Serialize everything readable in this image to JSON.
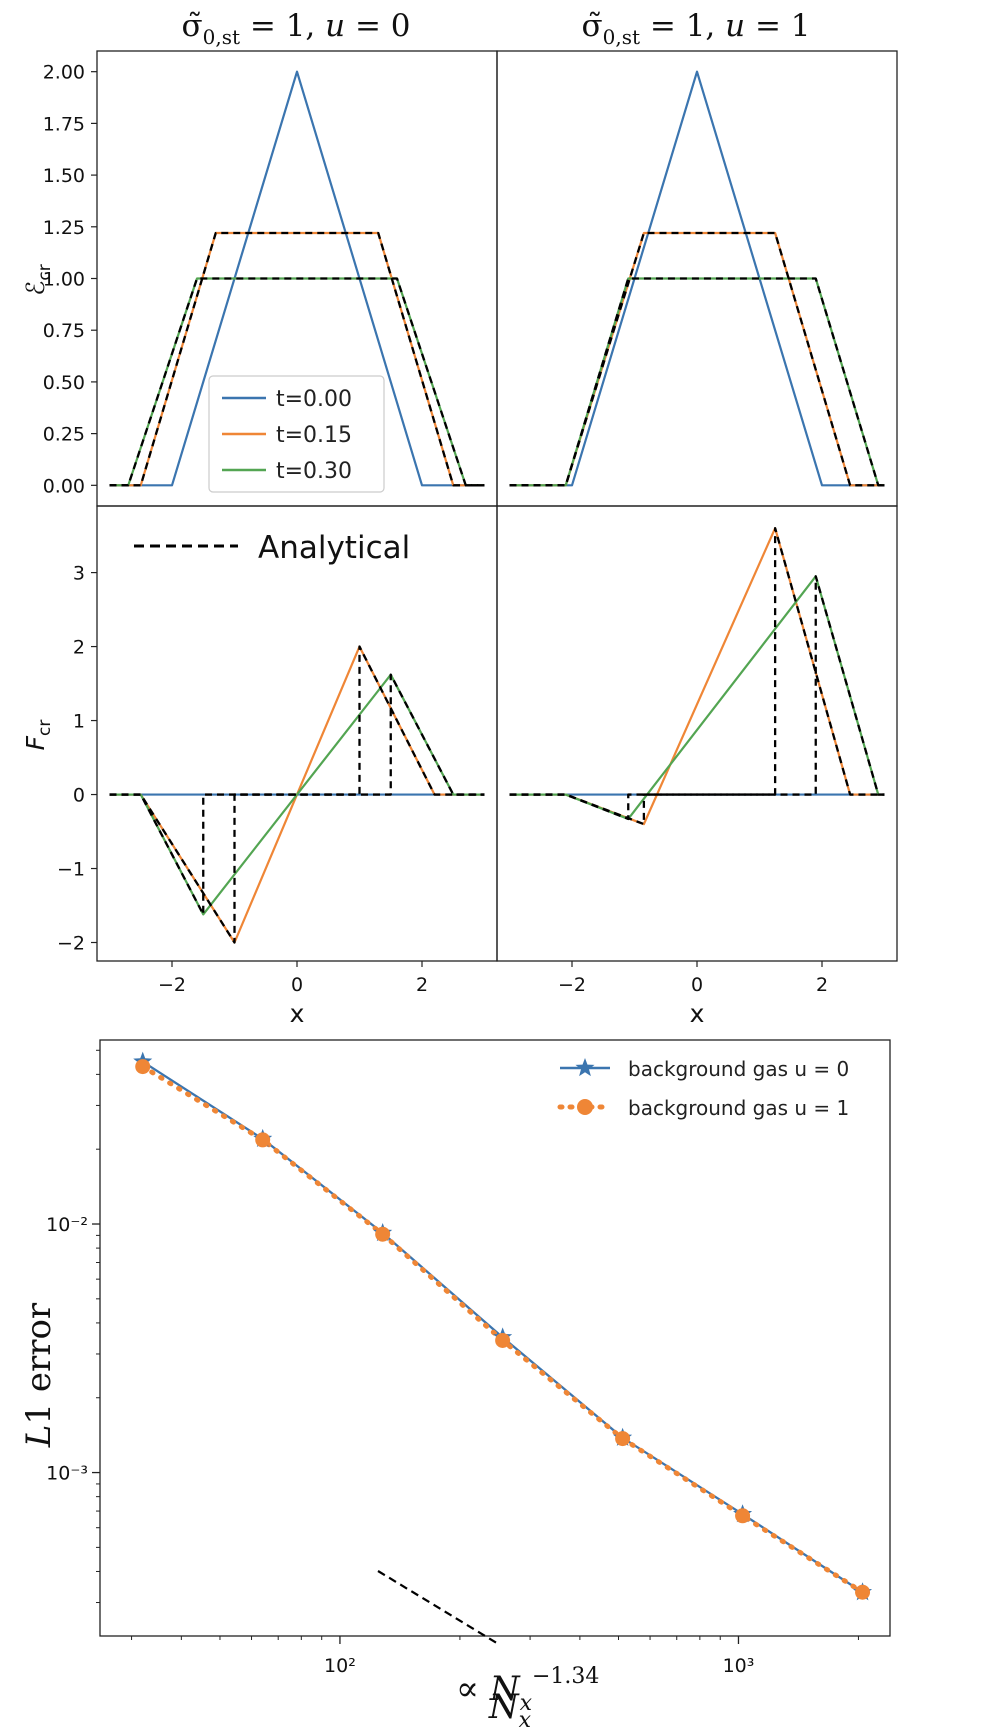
{
  "figure": {
    "col_titles": [
      "σ̃0,st = 1, u = 0",
      "σ̃0,st = 1, u = 1"
    ],
    "analytical_label": "Analytical"
  },
  "colors": {
    "t0": "#3b75af",
    "t015": "#ef8636",
    "t030": "#53a552",
    "analytical": "#000000"
  },
  "chart_data": [
    {
      "id": "E_u0",
      "type": "line",
      "ylabel": "ℰcr",
      "xlim": [
        -3.2,
        3.2
      ],
      "ylim": [
        -0.1,
        2.1
      ],
      "yticks": [
        0.0,
        0.25,
        0.5,
        0.75,
        1.0,
        1.25,
        1.5,
        1.75,
        2.0
      ],
      "ytick_labels": [
        "0.00",
        "0.25",
        "0.50",
        "0.75",
        "1.00",
        "1.25",
        "1.50",
        "1.75",
        "2.00"
      ],
      "legend": [
        "t=0.00",
        "t=0.15",
        "t=0.30"
      ],
      "series": [
        {
          "name": "t=0.00",
          "color": "#3b75af",
          "x": [
            -3,
            -2,
            0,
            2,
            3
          ],
          "y": [
            0,
            0,
            2,
            0,
            0
          ]
        },
        {
          "name": "t=0.15",
          "color": "#ef8636",
          "x": [
            -3,
            -2.5,
            -1.3,
            1.3,
            2.5,
            3
          ],
          "y": [
            0,
            0,
            1.22,
            1.22,
            0,
            0
          ]
        },
        {
          "name": "t=0.30",
          "color": "#53a552",
          "x": [
            -3,
            -2.7,
            -1.6,
            1.6,
            2.7,
            3
          ],
          "y": [
            0,
            0,
            1.0,
            1.0,
            0,
            0
          ]
        },
        {
          "name": "Analytical",
          "dashed": true,
          "x": [
            -3,
            -2.5,
            -1.3,
            1.3,
            2.5,
            3
          ],
          "y": [
            0,
            0,
            1.22,
            1.22,
            0,
            0
          ]
        },
        {
          "name": "Analytical",
          "dashed": true,
          "x": [
            -3,
            -2.7,
            -1.6,
            1.6,
            2.7,
            3
          ],
          "y": [
            0,
            0,
            1.0,
            1.0,
            0,
            0
          ]
        }
      ]
    },
    {
      "id": "E_u1",
      "type": "line",
      "xlim": [
        -3.2,
        3.2
      ],
      "ylim": [
        -0.1,
        2.1
      ],
      "series": [
        {
          "name": "t=0.00",
          "color": "#3b75af",
          "x": [
            -3,
            -2,
            0,
            2,
            3
          ],
          "y": [
            0,
            0,
            2,
            0,
            0
          ]
        },
        {
          "name": "t=0.15",
          "color": "#ef8636",
          "x": [
            -3,
            -2.1,
            -0.85,
            1.25,
            2.45,
            3
          ],
          "y": [
            0,
            0,
            1.22,
            1.22,
            0,
            0
          ]
        },
        {
          "name": "t=0.30",
          "color": "#53a552",
          "x": [
            -3,
            -2.1,
            -1.1,
            1.9,
            2.9,
            3
          ],
          "y": [
            0,
            0,
            1.0,
            1.0,
            0,
            0
          ]
        },
        {
          "name": "Analytical",
          "dashed": true,
          "x": [
            -3,
            -2.1,
            -0.85,
            1.25,
            2.45,
            3
          ],
          "y": [
            0,
            0,
            1.22,
            1.22,
            0,
            0
          ]
        },
        {
          "name": "Analytical",
          "dashed": true,
          "x": [
            -3,
            -2.1,
            -1.1,
            1.9,
            2.9,
            3
          ],
          "y": [
            0,
            0,
            1.0,
            1.0,
            0,
            0
          ]
        }
      ]
    },
    {
      "id": "F_u0",
      "type": "line",
      "ylabel": "Fcr",
      "xlabel": "x",
      "xlim": [
        -3.2,
        3.2
      ],
      "ylim": [
        -2.25,
        3.9
      ],
      "xticks": [
        -2,
        0,
        2
      ],
      "xtick_labels": [
        "−2",
        "0",
        "2"
      ],
      "yticks": [
        -2,
        -1,
        0,
        1,
        2,
        3
      ],
      "ytick_labels": [
        "−2",
        "−1",
        "0",
        "1",
        "2",
        "3"
      ],
      "series": [
        {
          "name": "t=0.00",
          "color": "#3b75af",
          "x": [
            -3,
            3
          ],
          "y": [
            0,
            0
          ]
        },
        {
          "name": "t=0.15",
          "color": "#ef8636",
          "x": [
            -3,
            -2.5,
            -1.0,
            1.0,
            2.2,
            3
          ],
          "y": [
            0,
            0,
            -2.0,
            2.0,
            0,
            0
          ]
        },
        {
          "name": "t=0.30",
          "color": "#53a552",
          "x": [
            -3,
            -2.5,
            -1.5,
            1.5,
            2.5,
            3
          ],
          "y": [
            0,
            0,
            -1.62,
            1.62,
            0,
            0
          ]
        },
        {
          "name": "Analytical",
          "dashed": true,
          "x": [
            -3,
            -2.5,
            -1.0,
            -1.0,
            1.0,
            1.0,
            2.2,
            3
          ],
          "y": [
            0,
            0,
            -2.0,
            0,
            0,
            2.0,
            0,
            0
          ]
        },
        {
          "name": "Analytical",
          "dashed": true,
          "x": [
            -3,
            -2.5,
            -1.5,
            -1.5,
            1.5,
            1.5,
            2.5,
            3
          ],
          "y": [
            0,
            0,
            -1.62,
            0,
            0,
            1.62,
            0,
            0
          ]
        }
      ]
    },
    {
      "id": "F_u1",
      "type": "line",
      "xlabel": "x",
      "xlim": [
        -3.2,
        3.2
      ],
      "ylim": [
        -2.25,
        3.9
      ],
      "xticks": [
        -2,
        0,
        2
      ],
      "xtick_labels": [
        "−2",
        "0",
        "2"
      ],
      "series": [
        {
          "name": "t=0.00",
          "color": "#3b75af",
          "x": [
            -3,
            3
          ],
          "y": [
            0,
            0
          ]
        },
        {
          "name": "t=0.15",
          "color": "#ef8636",
          "x": [
            -3,
            -2.1,
            -0.85,
            1.25,
            2.45,
            3
          ],
          "y": [
            0,
            0,
            -0.4,
            3.6,
            0,
            0
          ]
        },
        {
          "name": "t=0.30",
          "color": "#53a552",
          "x": [
            -3,
            -2.1,
            -1.1,
            1.9,
            2.9,
            3
          ],
          "y": [
            0,
            0,
            -0.33,
            2.95,
            0,
            0
          ]
        },
        {
          "name": "Analytical",
          "dashed": true,
          "x": [
            -3,
            -2.1,
            -0.85,
            -0.85,
            1.25,
            1.25,
            2.45,
            3
          ],
          "y": [
            0,
            0,
            -0.4,
            0,
            0,
            3.6,
            0,
            0
          ]
        },
        {
          "name": "Analytical",
          "dashed": true,
          "x": [
            -3,
            -2.1,
            -1.1,
            -1.1,
            1.9,
            1.9,
            2.9,
            3
          ],
          "y": [
            0,
            0,
            -0.33,
            0,
            0,
            2.95,
            0,
            0
          ]
        }
      ]
    },
    {
      "id": "L1_error",
      "type": "line",
      "scale": "loglog",
      "xlabel": "Nx",
      "ylabel": "L1 error",
      "xlim": [
        25,
        2400
      ],
      "ylim": [
        0.00022,
        0.055
      ],
      "xtick_labels": [
        "10²",
        "10³"
      ],
      "ytick_labels": [
        "10⁻²",
        "10⁻³"
      ],
      "legend": [
        "background gas u = 0",
        "background gas u = 1"
      ],
      "annotation": "∝ Nx^−1.34",
      "reference_slope": -1.34,
      "series": [
        {
          "name": "background gas u = 0",
          "color": "#3b75af",
          "marker": "star",
          "x": [
            32,
            64,
            128,
            256,
            512,
            1024,
            2048
          ],
          "y": [
            0.045,
            0.022,
            0.0092,
            0.0035,
            0.00138,
            0.00068,
            0.00033
          ]
        },
        {
          "name": "background gas u = 1",
          "color": "#ef8636",
          "marker": "circle",
          "dotted": true,
          "x": [
            32,
            64,
            128,
            256,
            512,
            1024,
            2048
          ],
          "y": [
            0.043,
            0.0218,
            0.0091,
            0.0034,
            0.00137,
            0.00067,
            0.00033
          ]
        }
      ]
    }
  ]
}
